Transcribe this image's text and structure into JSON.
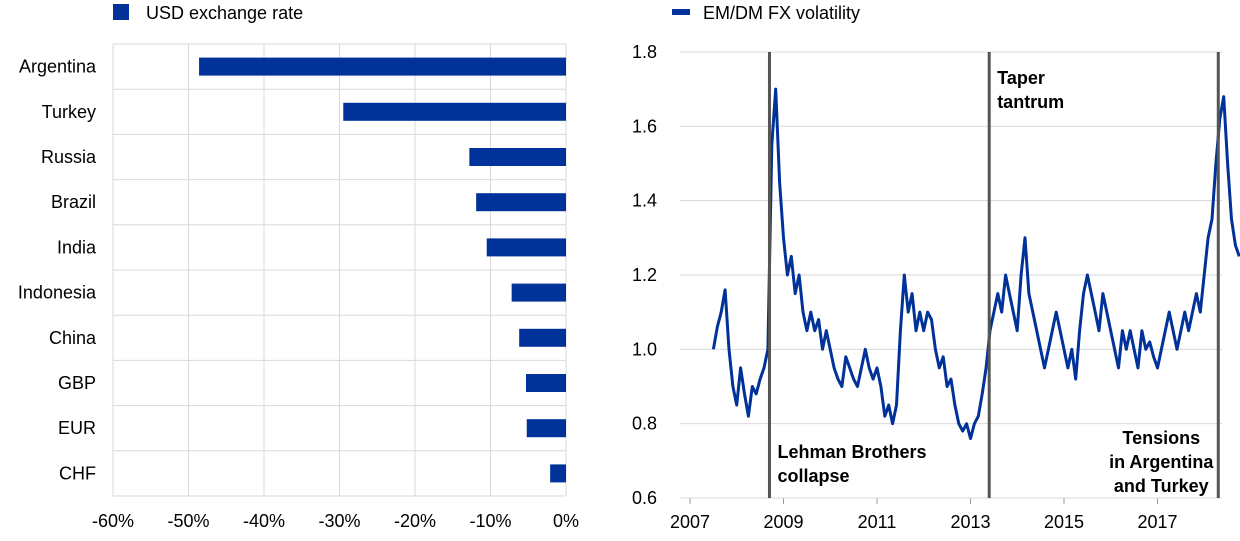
{
  "colors": {
    "bar": "#003299",
    "line": "#003299",
    "event_line": "#555555",
    "grid": "#d9d9d9"
  },
  "chart_data": [
    {
      "type": "bar",
      "orientation": "horizontal",
      "legend": "USD exchange rate",
      "legend_position": "top-left",
      "categories": [
        "Argentina",
        "Turkey",
        "Russia",
        "Brazil",
        "India",
        "Indonesia",
        "China",
        "GBP",
        "EUR",
        "CHF"
      ],
      "values": [
        -48.6,
        -29.5,
        -12.8,
        -11.9,
        -10.5,
        -7.2,
        -6.2,
        -5.3,
        -5.2,
        -2.1
      ],
      "xlim": [
        -60,
        0
      ],
      "xticks": [
        -60,
        -50,
        -40,
        -30,
        -20,
        -10,
        0
      ],
      "xtick_labels": [
        "-60%",
        "-50%",
        "-40%",
        "-30%",
        "-20%",
        "-10%",
        "0%"
      ],
      "grid": true
    },
    {
      "type": "line",
      "legend": "EM/DM FX volatility",
      "legend_position": "top-left",
      "x_start": 2007.5,
      "x_step_years": 0.08333,
      "values": [
        1.0,
        1.06,
        1.1,
        1.16,
        1.0,
        0.9,
        0.85,
        0.95,
        0.88,
        0.82,
        0.9,
        0.88,
        0.92,
        0.95,
        1.0,
        1.55,
        1.7,
        1.45,
        1.3,
        1.2,
        1.25,
        1.15,
        1.2,
        1.1,
        1.05,
        1.1,
        1.05,
        1.08,
        1.0,
        1.05,
        1.0,
        0.95,
        0.92,
        0.9,
        0.98,
        0.95,
        0.92,
        0.9,
        0.95,
        1.0,
        0.95,
        0.92,
        0.95,
        0.9,
        0.82,
        0.85,
        0.8,
        0.85,
        1.05,
        1.2,
        1.1,
        1.15,
        1.05,
        1.1,
        1.05,
        1.1,
        1.08,
        1.0,
        0.95,
        0.98,
        0.9,
        0.92,
        0.85,
        0.8,
        0.78,
        0.8,
        0.76,
        0.8,
        0.82,
        0.88,
        0.95,
        1.05,
        1.1,
        1.15,
        1.1,
        1.2,
        1.15,
        1.1,
        1.05,
        1.2,
        1.3,
        1.15,
        1.1,
        1.05,
        1.0,
        0.95,
        1.0,
        1.05,
        1.1,
        1.05,
        1.0,
        0.95,
        1.0,
        0.92,
        1.05,
        1.15,
        1.2,
        1.15,
        1.1,
        1.05,
        1.15,
        1.1,
        1.05,
        1.0,
        0.95,
        1.05,
        1.0,
        1.05,
        1.0,
        0.95,
        1.05,
        1.0,
        1.02,
        0.98,
        0.95,
        1.0,
        1.05,
        1.1,
        1.05,
        1.0,
        1.05,
        1.1,
        1.05,
        1.1,
        1.15,
        1.1,
        1.2,
        1.3,
        1.35,
        1.5,
        1.62,
        1.68,
        1.5,
        1.35,
        1.28,
        1.25
      ],
      "xlim": [
        2007,
        2019
      ],
      "ylim": [
        0.6,
        1.8
      ],
      "xticks": [
        "2007",
        "2009",
        "2011",
        "2013",
        "2015",
        "2017"
      ],
      "yticks": [
        "0.6",
        "0.8",
        "1.0",
        "1.2",
        "1.4",
        "1.6",
        "1.8"
      ],
      "events": [
        {
          "x": 2008.7,
          "label": [
            "Lehman Brothers",
            "collapse"
          ],
          "label_pos": "bottom-right"
        },
        {
          "x": 2013.4,
          "label": [
            "Taper",
            "tantrum"
          ],
          "label_pos": "top-right"
        },
        {
          "x": 2018.3,
          "label": [
            "Tensions",
            "in Argentina",
            "and Turkey"
          ],
          "label_pos": "bottom-left"
        }
      ]
    }
  ]
}
